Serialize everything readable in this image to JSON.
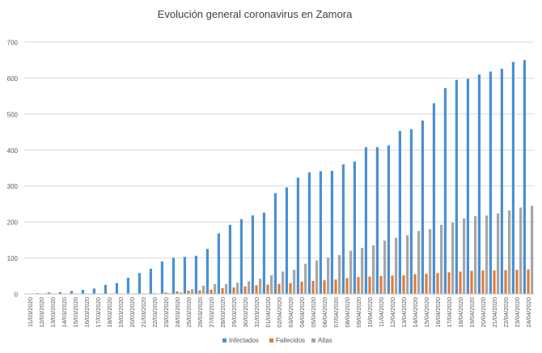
{
  "chart_data": {
    "type": "bar",
    "title": "Evolución general coronavirus en Zamora",
    "xlabel": "",
    "ylabel": "",
    "ylim": [
      0,
      700
    ],
    "yticks": [
      0,
      100,
      200,
      300,
      400,
      500,
      600,
      700
    ],
    "grid": true,
    "legend_position": "bottom",
    "categories": [
      "11/03/2020",
      "12/03/2020",
      "13/03/2020",
      "14/03/2020",
      "15/03/2020",
      "16/03/2020",
      "17/03/2020",
      "18/03/2020",
      "19/03/2020",
      "20/03/2020",
      "21/03/2020",
      "22/03/2020",
      "23/03/2020",
      "24/03/2020",
      "25/03/2020",
      "26/03/2020",
      "27/03/2020",
      "28/03/2020",
      "29/03/2020",
      "30/03/2020",
      "31/03/2020",
      "01/04/2020",
      "02/04/2020",
      "03/04/2020",
      "04/04/2020",
      "05/04/2020",
      "06/04/2020",
      "07/04/2020",
      "08/04/2020",
      "09/04/2020",
      "10/04/2020",
      "11/04/2020",
      "12/04/2020",
      "13/04/2020",
      "14/04/2020",
      "15/04/2020",
      "16/04/2020",
      "17/04/2020",
      "18/04/2020",
      "19/04/2020",
      "20/04/2020",
      "21/04/2020",
      "22/04/2020",
      "23/04/2020",
      "24/04/2020"
    ],
    "series": [
      {
        "name": "Infectados",
        "color": "#4a90d2",
        "values": [
          1,
          2,
          4,
          5,
          8,
          11,
          15,
          25,
          30,
          45,
          58,
          70,
          90,
          100,
          103,
          106,
          125,
          168,
          192,
          208,
          218,
          226,
          280,
          296,
          323,
          338,
          341,
          342,
          360,
          368,
          408,
          408,
          413,
          453,
          458,
          482,
          530,
          572,
          595,
          598,
          610,
          618,
          626,
          645,
          650
        ]
      },
      {
        "name": "Fallecidos",
        "color": "#e07b39",
        "values": [
          0,
          0,
          0,
          0,
          0,
          0,
          0,
          0,
          0,
          0,
          1,
          2,
          4,
          7,
          9,
          10,
          12,
          16,
          18,
          21,
          24,
          26,
          28,
          30,
          34,
          36,
          38,
          40,
          44,
          47,
          48,
          50,
          51,
          52,
          55,
          56,
          58,
          60,
          62,
          64,
          65,
          65,
          66,
          67,
          68
        ]
      },
      {
        "name": "Altas",
        "color": "#a6a6a6",
        "values": [
          0,
          0,
          0,
          0,
          0,
          0,
          0,
          0,
          0,
          0,
          0,
          0,
          2,
          4,
          13,
          23,
          27,
          27,
          31,
          35,
          42,
          52,
          62,
          67,
          84,
          93,
          101,
          108,
          120,
          128,
          135,
          148,
          156,
          163,
          175,
          180,
          192,
          198,
          210,
          216,
          218,
          224,
          232,
          240,
          245
        ]
      }
    ]
  }
}
